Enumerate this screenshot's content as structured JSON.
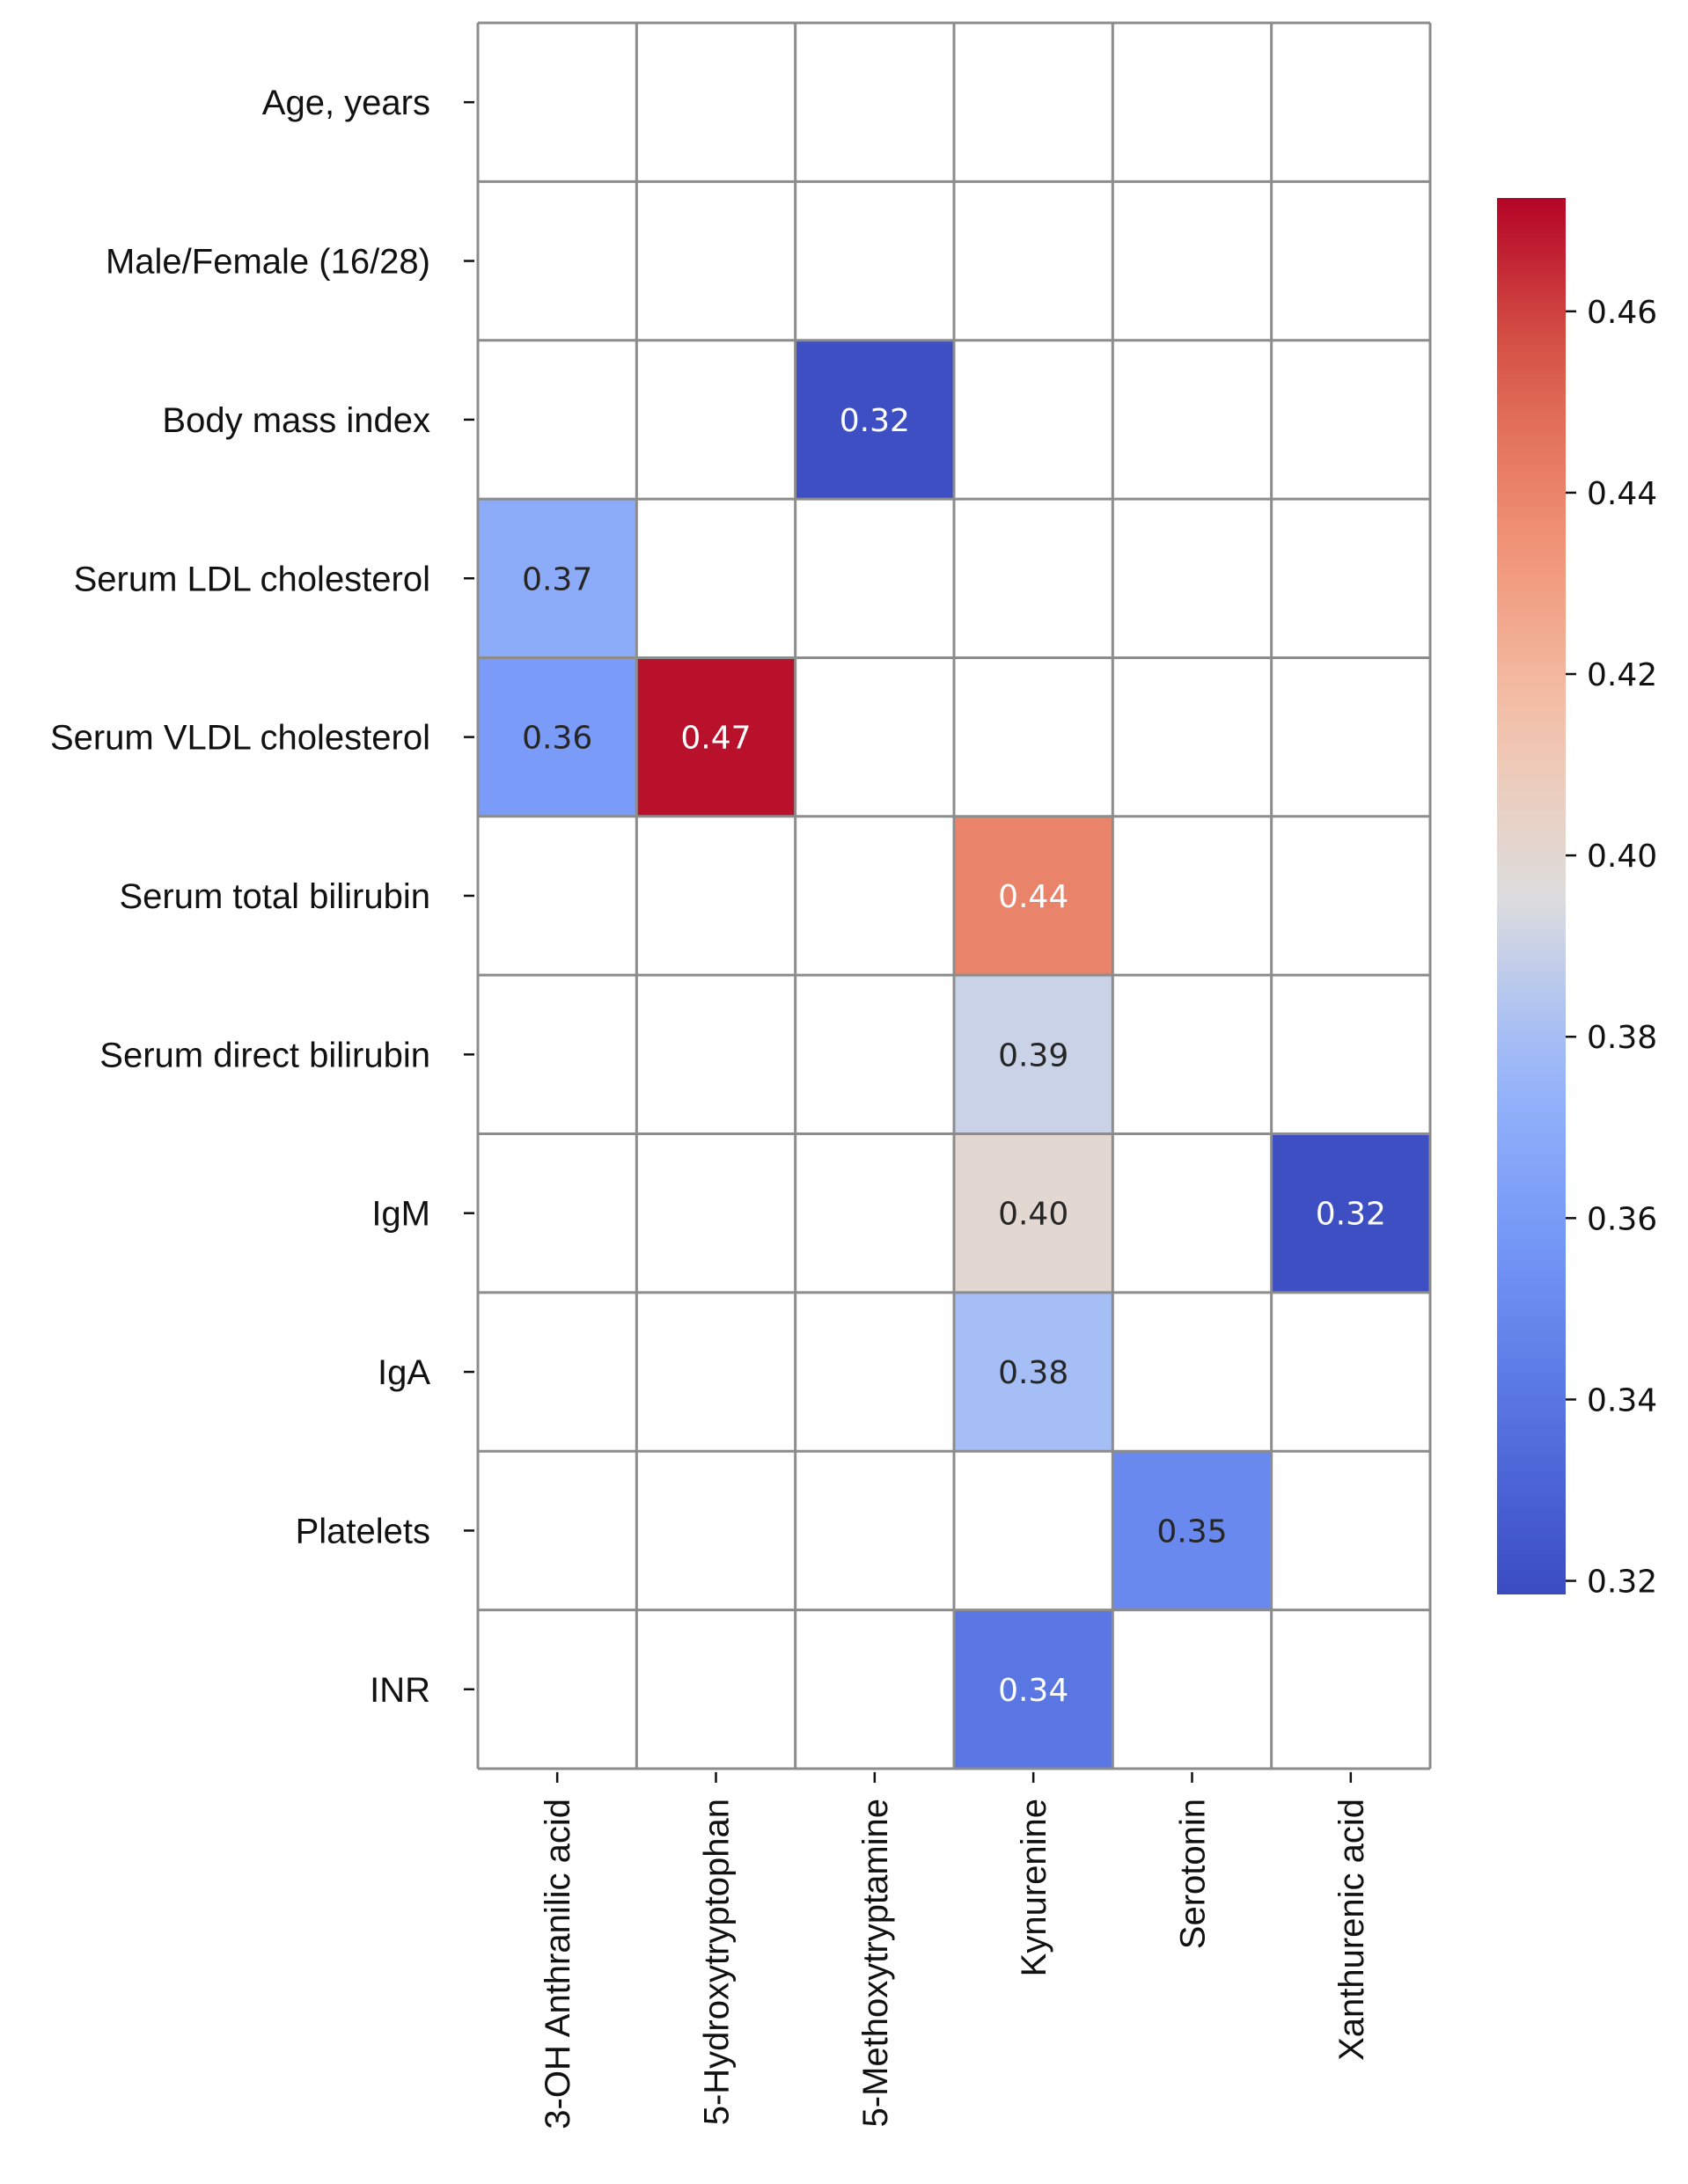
{
  "chart_data": {
    "type": "heatmap",
    "title": "",
    "xlabel": "",
    "ylabel": "",
    "rows": [
      "Age, years",
      "Male/Female (16/28)",
      "Body mass index",
      "Serum LDL cholesterol",
      "Serum VLDL cholesterol",
      "Serum total bilirubin",
      "Serum direct bilirubin",
      "IgM",
      "IgA",
      "Platelets",
      "INR"
    ],
    "columns": [
      "3-OH Anthranilic acid",
      "5-Hydroxytryptophan",
      "5-Methoxytryptamine",
      "Kynurenine",
      "Serotonin",
      "Xanthurenic acid"
    ],
    "cells": [
      {
        "row": 2,
        "col": 2,
        "value": 0.32,
        "label": "0.32"
      },
      {
        "row": 3,
        "col": 0,
        "value": 0.37,
        "label": "0.37"
      },
      {
        "row": 4,
        "col": 0,
        "value": 0.36,
        "label": "0.36"
      },
      {
        "row": 4,
        "col": 1,
        "value": 0.47,
        "label": "0.47"
      },
      {
        "row": 5,
        "col": 3,
        "value": 0.44,
        "label": "0.44"
      },
      {
        "row": 6,
        "col": 3,
        "value": 0.39,
        "label": "0.39"
      },
      {
        "row": 7,
        "col": 3,
        "value": 0.4,
        "label": "0.40"
      },
      {
        "row": 7,
        "col": 5,
        "value": 0.32,
        "label": "0.32"
      },
      {
        "row": 8,
        "col": 3,
        "value": 0.38,
        "label": "0.38"
      },
      {
        "row": 9,
        "col": 4,
        "value": 0.35,
        "label": "0.35"
      },
      {
        "row": 10,
        "col": 3,
        "value": 0.34,
        "label": "0.34"
      }
    ],
    "colorbar": {
      "colormap": "coolwarm",
      "vmin": 0.3185,
      "vmax": 0.4725,
      "ticks": [
        0.32,
        0.34,
        0.36,
        0.38,
        0.4,
        0.42,
        0.44,
        0.46
      ],
      "tick_labels": [
        "0.32",
        "0.34",
        "0.36",
        "0.38",
        "0.40",
        "0.42",
        "0.44",
        "0.46"
      ]
    },
    "grid_color": "#8c8c8c",
    "empty_cell_color": "#ffffff"
  }
}
